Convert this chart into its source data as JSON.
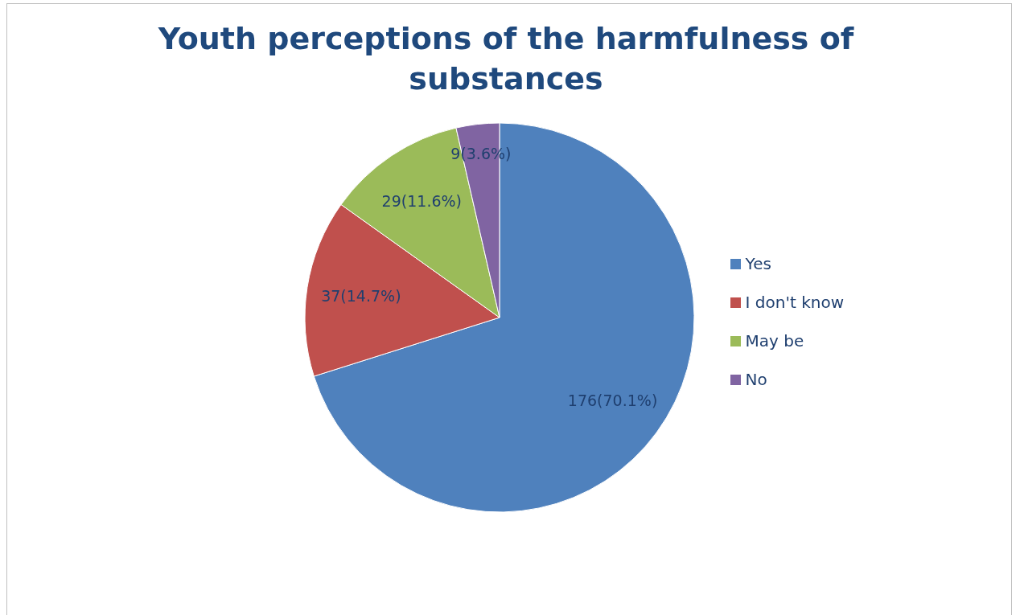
{
  "chart_data": {
    "type": "pie",
    "title": "Youth perceptions of the harmfulness of substances",
    "categories": [
      "Yes",
      "I don't know",
      "May be",
      "No"
    ],
    "values": [
      176,
      37,
      29,
      9
    ],
    "colors": [
      "#4f81bd",
      "#c0504d",
      "#9bbb59",
      "#8064a2"
    ],
    "value_labels": [
      "176(70.1%)",
      "37(14.7%)",
      "29(11.6%)",
      "9(3.6%)"
    ],
    "legend": "right"
  }
}
